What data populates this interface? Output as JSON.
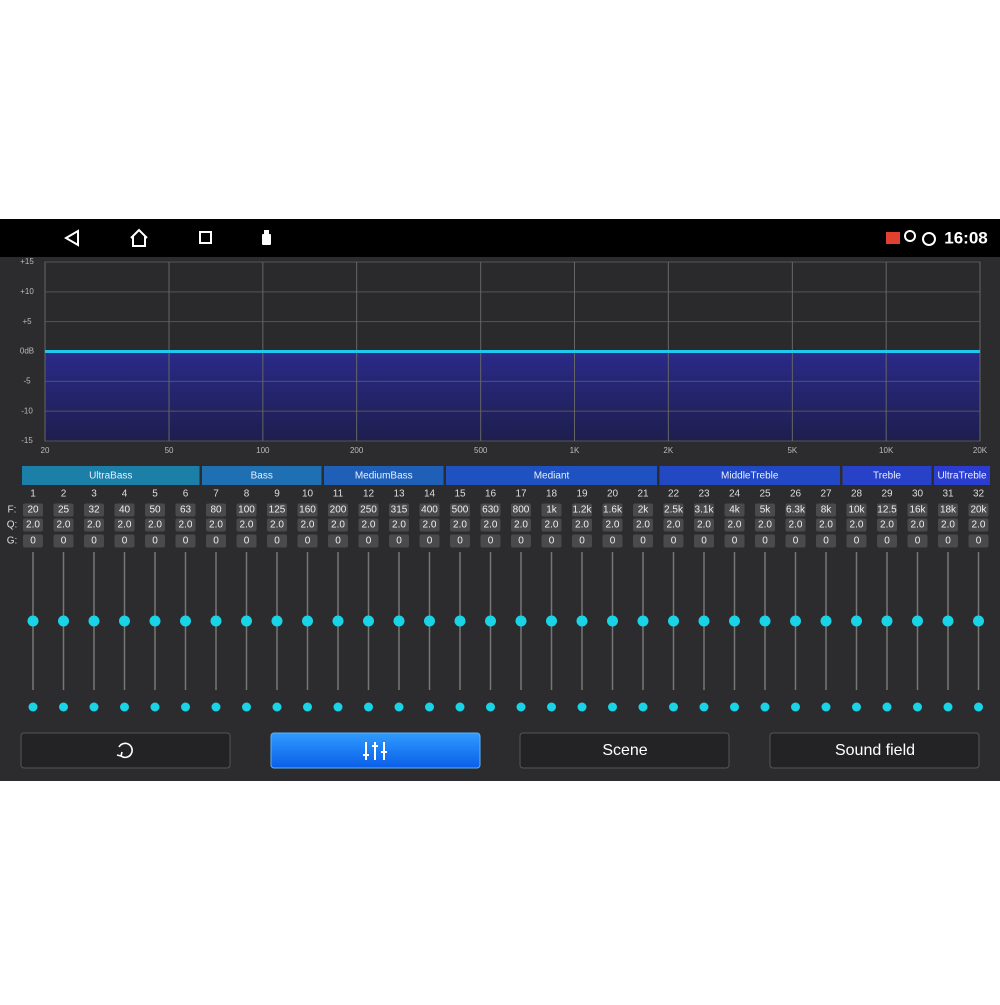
{
  "status_bar": {
    "time": "16:08"
  },
  "graph": {
    "yticks": [
      {
        "value": 15,
        "label": "+15"
      },
      {
        "value": 10,
        "label": "+10"
      },
      {
        "value": 5,
        "label": "+5"
      },
      {
        "value": 0,
        "label": "0dB"
      },
      -5,
      -10,
      -15
    ],
    "xticks": [
      20,
      50,
      100,
      200,
      500,
      {
        "value": 1000,
        "label": "1K"
      },
      {
        "value": 2000,
        "label": "2K"
      },
      {
        "value": 5000,
        "label": "5K"
      },
      {
        "value": 10000,
        "label": "10K"
      },
      {
        "value": 20000,
        "label": "20K"
      }
    ]
  },
  "row_labels": {
    "f": "F:",
    "q": "Q:",
    "g": "G:"
  },
  "groups": [
    {
      "name": "UltraBass",
      "bands": [
        {
          "n": 1,
          "f": "20",
          "q": "2.0",
          "g": 0
        },
        {
          "n": 2,
          "f": "25",
          "q": "2.0",
          "g": 0
        },
        {
          "n": 3,
          "f": "32",
          "q": "2.0",
          "g": 0
        },
        {
          "n": 4,
          "f": "40",
          "q": "2.0",
          "g": 0
        },
        {
          "n": 5,
          "f": "50",
          "q": "2.0",
          "g": 0
        },
        {
          "n": 6,
          "f": "63",
          "q": "2.0",
          "g": 0
        }
      ]
    },
    {
      "name": "Bass",
      "bands": [
        {
          "n": 7,
          "f": "80",
          "q": "2.0",
          "g": 0
        },
        {
          "n": 8,
          "f": "100",
          "q": "2.0",
          "g": 0
        },
        {
          "n": 9,
          "f": "125",
          "q": "2.0",
          "g": 0
        },
        {
          "n": 10,
          "f": "160",
          "q": "2.0",
          "g": 0
        }
      ]
    },
    {
      "name": "MediumBass",
      "bands": [
        {
          "n": 11,
          "f": "200",
          "q": "2.0",
          "g": 0
        },
        {
          "n": 12,
          "f": "250",
          "q": "2.0",
          "g": 0
        },
        {
          "n": 13,
          "f": "315",
          "q": "2.0",
          "g": 0
        },
        {
          "n": 14,
          "f": "400",
          "q": "2.0",
          "g": 0
        }
      ]
    },
    {
      "name": "Mediant",
      "bands": [
        {
          "n": 15,
          "f": "500",
          "q": "2.0",
          "g": 0
        },
        {
          "n": 16,
          "f": "630",
          "q": "2.0",
          "g": 0
        },
        {
          "n": 17,
          "f": "800",
          "q": "2.0",
          "g": 0
        },
        {
          "n": 18,
          "f": "1k",
          "q": "2.0",
          "g": 0
        },
        {
          "n": 19,
          "f": "1.2k",
          "q": "2.0",
          "g": 0
        },
        {
          "n": 20,
          "f": "1.6k",
          "q": "2.0",
          "g": 0
        },
        {
          "n": 21,
          "f": "2k",
          "q": "2.0",
          "g": 0
        }
      ]
    },
    {
      "name": "MiddleTreble",
      "bands": [
        {
          "n": 22,
          "f": "2.5k",
          "q": "2.0",
          "g": 0
        },
        {
          "n": 23,
          "f": "3.1k",
          "q": "2.0",
          "g": 0
        },
        {
          "n": 24,
          "f": "4k",
          "q": "2.0",
          "g": 0
        },
        {
          "n": 25,
          "f": "5k",
          "q": "2.0",
          "g": 0
        },
        {
          "n": 26,
          "f": "6.3k",
          "q": "2.0",
          "g": 0
        },
        {
          "n": 27,
          "f": "8k",
          "q": "2.0",
          "g": 0
        }
      ]
    },
    {
      "name": "Treble",
      "bands": [
        {
          "n": 28,
          "f": "10k",
          "q": "2.0",
          "g": 0
        },
        {
          "n": 29,
          "f": "12.5",
          "q": "2.0",
          "g": 0
        },
        {
          "n": 30,
          "f": "16k",
          "q": "2.0",
          "g": 0
        }
      ]
    },
    {
      "name": "UltraTreble",
      "bands": [
        {
          "n": 31,
          "f": "18k",
          "q": "2.0",
          "g": 0
        },
        {
          "n": 32,
          "f": "20k",
          "q": "2.0",
          "g": 0
        }
      ]
    }
  ],
  "buttons": {
    "scene": "Scene",
    "sound_field": "Sound field"
  }
}
